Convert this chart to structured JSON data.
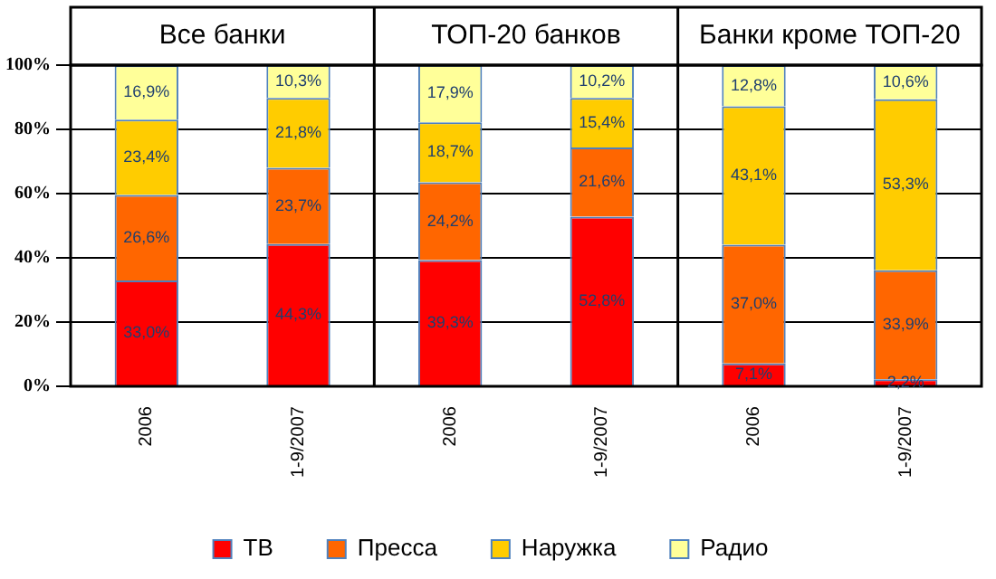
{
  "chart_data": {
    "type": "bar",
    "stacked": true,
    "categories": [
      "2006",
      "1-9/2007",
      "2006",
      "1-9/2007",
      "2006",
      "1-9/2007"
    ],
    "annotations": [
      "Все банки",
      "ТОП-20 банков",
      "Банки кроме ТОП-20"
    ],
    "series": [
      {
        "name": "ТВ",
        "color": "#ff0000",
        "values": [
          33.0,
          44.3,
          39.3,
          52.8,
          7.1,
          2.2
        ],
        "value_labels": [
          "33,0%",
          "44,3%",
          "39,3%",
          "52,8%",
          "7,1%",
          "2,2%"
        ]
      },
      {
        "name": "Пресса",
        "color": "#ff6600",
        "values": [
          26.6,
          23.7,
          24.2,
          21.6,
          37.0,
          33.9
        ],
        "value_labels": [
          "26,6%",
          "23,7%",
          "24,2%",
          "21,6%",
          "37,0%",
          "33,9%"
        ]
      },
      {
        "name": "Наружка",
        "color": "#ffcc00",
        "values": [
          23.4,
          21.8,
          18.7,
          15.4,
          43.1,
          53.3
        ],
        "value_labels": [
          "23,4%",
          "21,8%",
          "18,7%",
          "15,4%",
          "43,1%",
          "53,3%"
        ]
      },
      {
        "name": "Радио",
        "color": "#ffff99",
        "values": [
          16.9,
          10.3,
          17.9,
          10.2,
          12.8,
          10.6
        ],
        "value_labels": [
          "16,9%",
          "10,3%",
          "17,9%",
          "10,2%",
          "12,8%",
          "10,6%"
        ]
      }
    ],
    "ylim": [
      0,
      100
    ],
    "yticks": [
      {
        "value": 0,
        "label": "0%"
      },
      {
        "value": 20,
        "label": "20%"
      },
      {
        "value": 40,
        "label": "40%"
      },
      {
        "value": 60,
        "label": "60%"
      },
      {
        "value": 80,
        "label": "80%"
      },
      {
        "value": 100,
        "label": "100%"
      }
    ],
    "grid": "y",
    "legend": "bottom"
  }
}
